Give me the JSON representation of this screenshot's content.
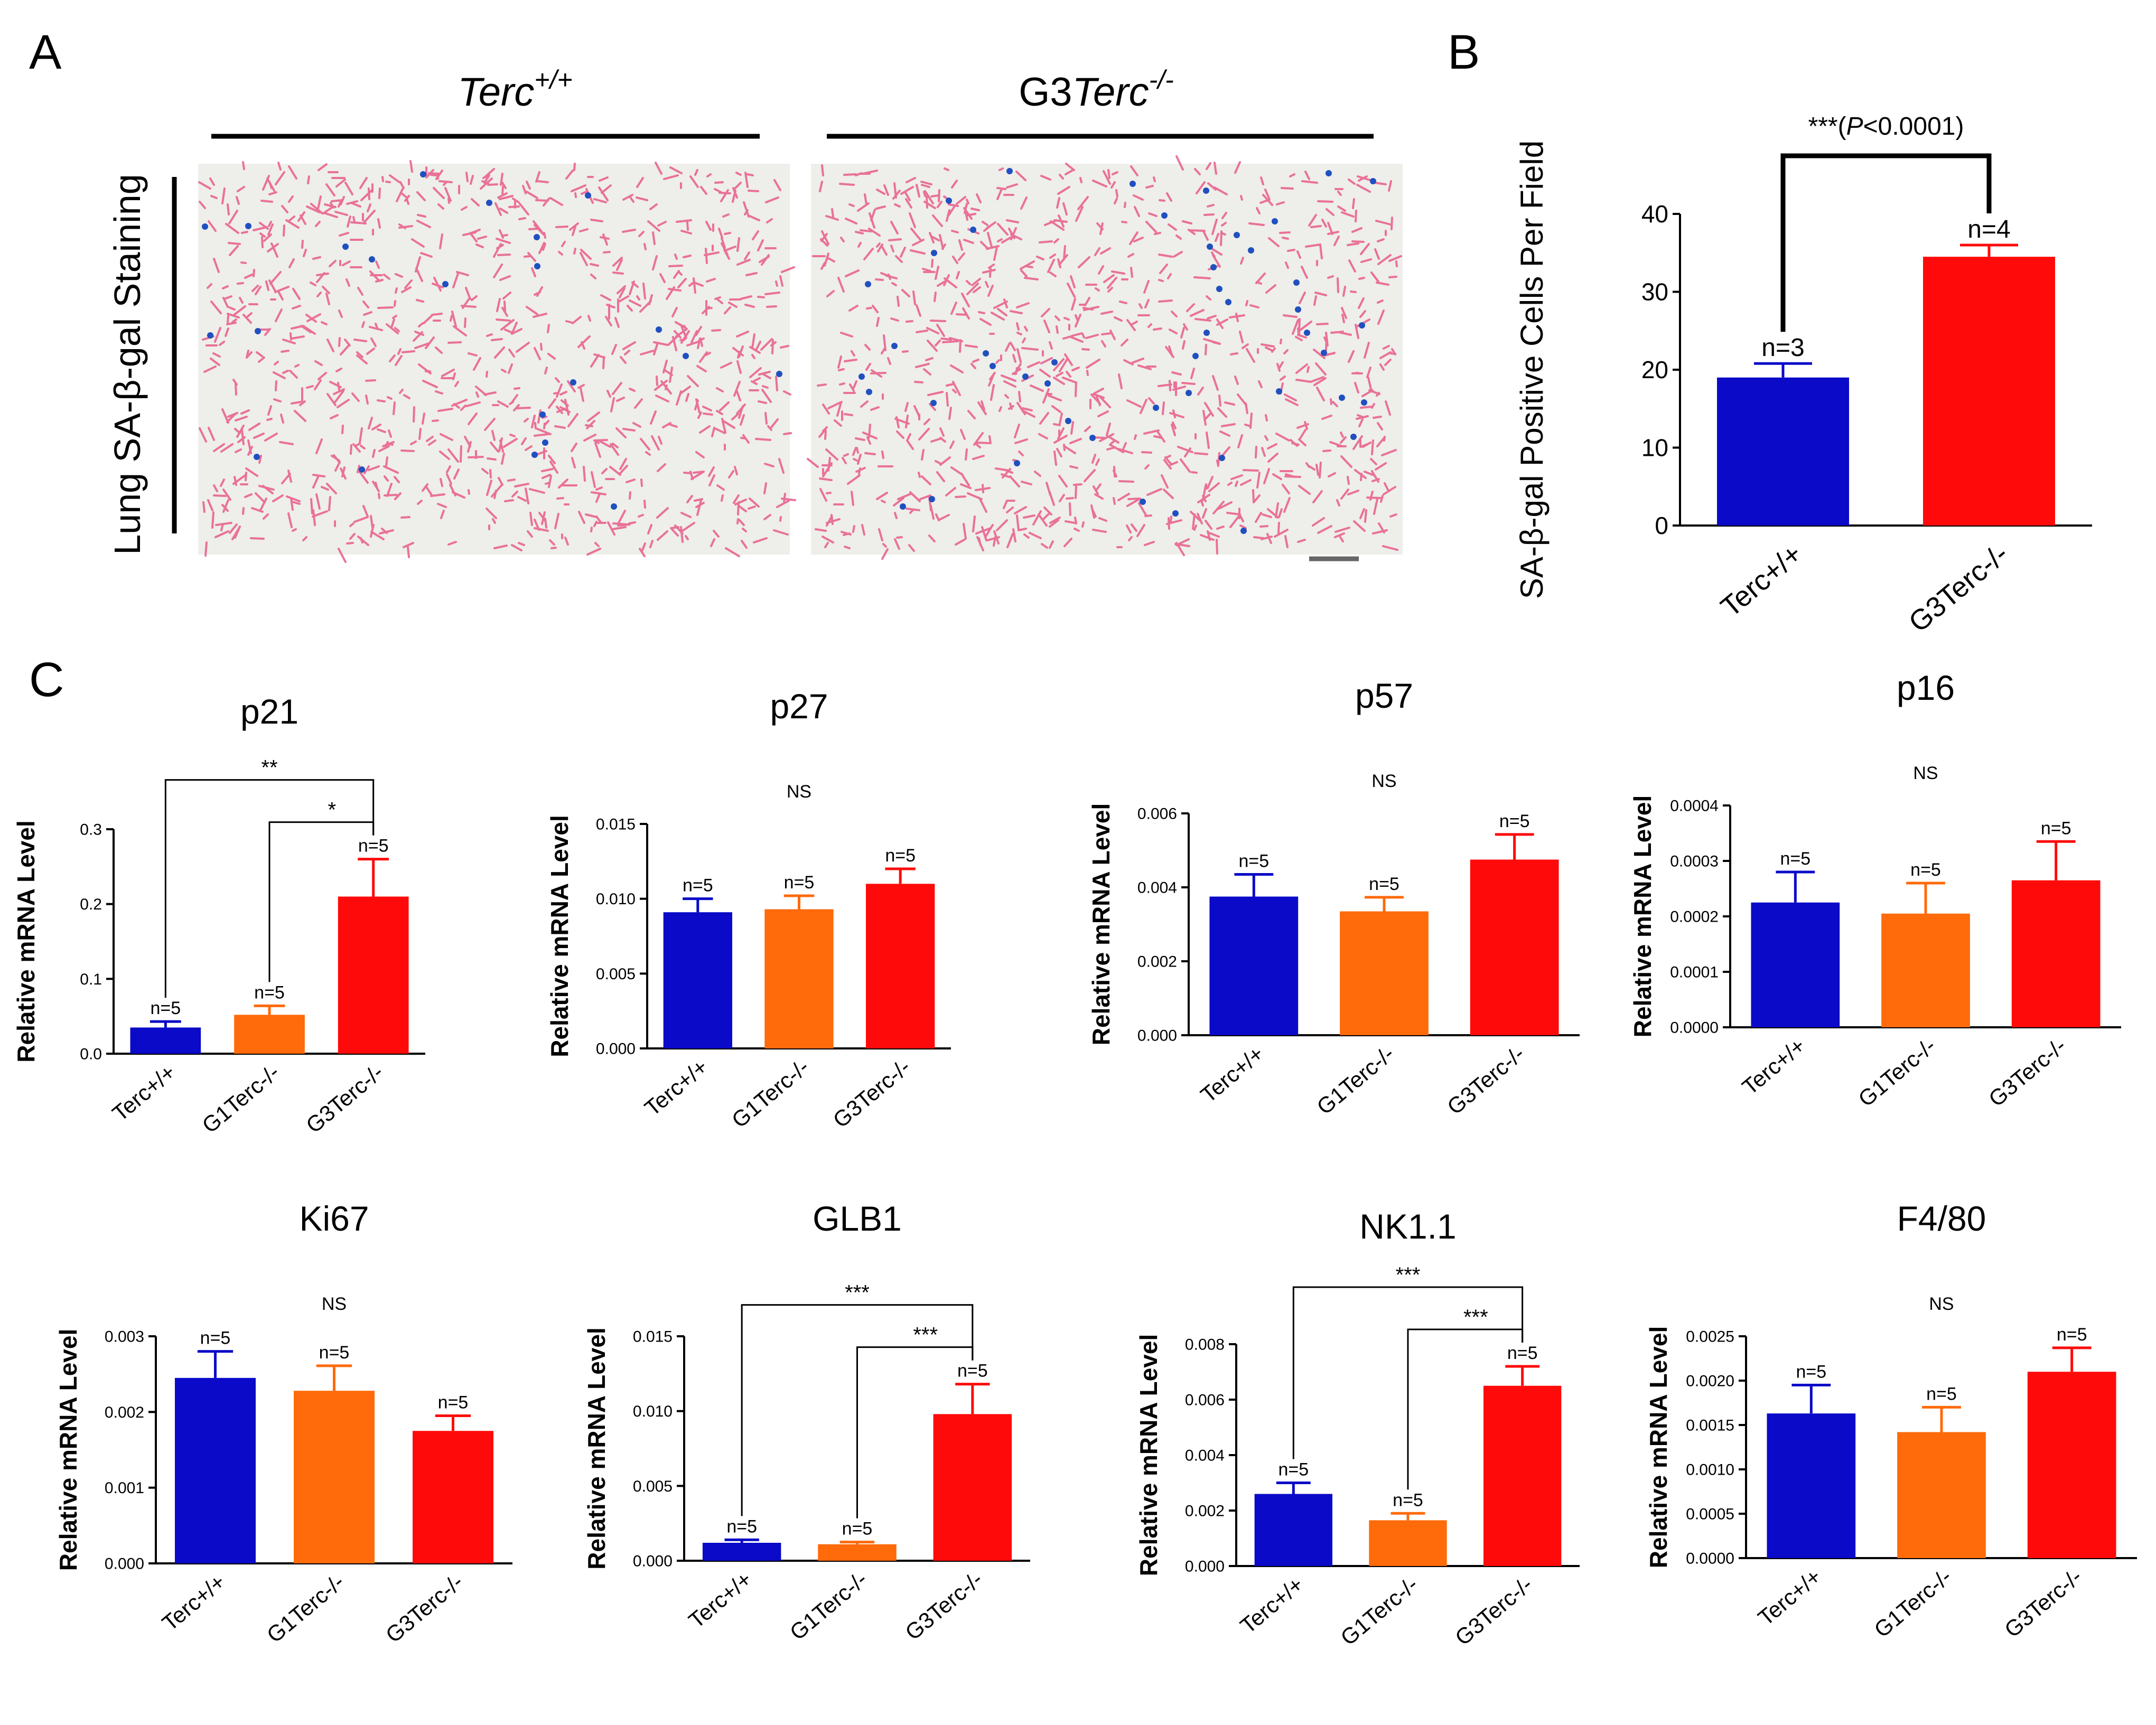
{
  "panels": {
    "a": "A",
    "b": "B",
    "c": "C"
  },
  "histology": {
    "row_label": "Lung SA-β-gal Staining",
    "groups": [
      {
        "base": "Terc",
        "sup": "+/+",
        "prefix": ""
      },
      {
        "base": "Terc",
        "sup": "-/-",
        "prefix": "G3"
      }
    ]
  },
  "colors": {
    "blue": "#0a0ac8",
    "orange": "#ff6a0a",
    "red": "#ff0a0a",
    "tissue_bg": "#eeeeea",
    "tissue_pink": "#e85b8a",
    "stain_blue": "#2050c0"
  },
  "chart_data": [
    {
      "id": "B",
      "type": "bar",
      "title": "",
      "ylabel": "SA-β-gal Positive Cells Per Field",
      "categories": [
        "Terc+/+",
        "G3Terc-/-"
      ],
      "values": [
        19,
        34.5
      ],
      "errors": [
        1.8,
        1.5
      ],
      "n_labels": [
        "n=3",
        "n=4"
      ],
      "ylim": [
        0,
        40
      ],
      "ticks": [
        "0",
        "10",
        "20",
        "30",
        "40"
      ],
      "sig": [
        {
          "from": 0,
          "to": 1,
          "label": "***",
          "p_open": "(",
          "p_italic": "P",
          "p_rest": "<0.0001)"
        }
      ]
    },
    {
      "id": "p21",
      "type": "bar",
      "title": "p21",
      "ylabel": "Relative mRNA Level",
      "categories": [
        "Terc+/+",
        "G1Terc-/-",
        "G3Terc-/-"
      ],
      "values": [
        0.035,
        0.052,
        0.21
      ],
      "errors": [
        0.008,
        0.012,
        0.05
      ],
      "n_labels": [
        "n=5",
        "n=5",
        "n=5"
      ],
      "ylim": [
        0,
        0.3
      ],
      "ticks": [
        "0.0",
        "0.1",
        "0.2",
        "0.3"
      ],
      "sig": [
        {
          "from": 0,
          "to": 2,
          "label": "**"
        },
        {
          "from": 1,
          "to": 2,
          "label": "*"
        }
      ]
    },
    {
      "id": "p27",
      "type": "bar",
      "title": "p27",
      "ylabel": "Relative mRNA Level",
      "categories": [
        "Terc+/+",
        "G1Terc-/-",
        "G3Terc-/-"
      ],
      "values": [
        0.0091,
        0.0093,
        0.011
      ],
      "errors": [
        0.0009,
        0.0009,
        0.001
      ],
      "n_labels": [
        "n=5",
        "n=5",
        "n=5"
      ],
      "ylim": [
        0,
        0.015
      ],
      "ticks": [
        "0.000",
        "0.005",
        "0.010",
        "0.015"
      ],
      "ns": "NS"
    },
    {
      "id": "p57",
      "type": "bar",
      "title": "p57",
      "ylabel": "Relative mRNA Level",
      "categories": [
        "Terc+/+",
        "G1Terc-/-",
        "G3Terc-/-"
      ],
      "values": [
        0.00375,
        0.00335,
        0.00475
      ],
      "errors": [
        0.0006,
        0.00038,
        0.00068
      ],
      "n_labels": [
        "n=5",
        "n=5",
        "n=5"
      ],
      "ylim": [
        0,
        0.006
      ],
      "ticks": [
        "0.000",
        "0.002",
        "0.004",
        "0.006"
      ],
      "ns": "NS"
    },
    {
      "id": "p16",
      "type": "bar",
      "title": "p16",
      "ylabel": "Relative mRNA Level",
      "categories": [
        "Terc+/+",
        "G1Terc-/-",
        "G3Terc-/-"
      ],
      "values": [
        0.000225,
        0.000205,
        0.000265
      ],
      "errors": [
        5.5e-05,
        5.5e-05,
        7e-05
      ],
      "n_labels": [
        "n=5",
        "n=5",
        "n=5"
      ],
      "ylim": [
        0,
        0.0004
      ],
      "ticks": [
        "0.0000",
        "0.0001",
        "0.0002",
        "0.0003",
        "0.0004"
      ],
      "ns": "NS"
    },
    {
      "id": "Ki67",
      "type": "bar",
      "title": "Ki67",
      "ylabel": "Relative mRNA Level",
      "categories": [
        "Terc+/+",
        "G1Terc-/-",
        "G3Terc-/-"
      ],
      "values": [
        0.00245,
        0.00228,
        0.00175
      ],
      "errors": [
        0.00035,
        0.00033,
        0.0002
      ],
      "n_labels": [
        "n=5",
        "n=5",
        "n=5"
      ],
      "ylim": [
        0,
        0.003
      ],
      "ticks": [
        "0.000",
        "0.001",
        "0.002",
        "0.003"
      ],
      "ns": "NS"
    },
    {
      "id": "GLB1",
      "type": "bar",
      "title": "GLB1",
      "ylabel": "Relative mRNA Level",
      "categories": [
        "Terc+/+",
        "G1Terc-/-",
        "G3Terc-/-"
      ],
      "values": [
        0.0012,
        0.0011,
        0.0098
      ],
      "errors": [
        0.0002,
        0.00015,
        0.002
      ],
      "n_labels": [
        "n=5",
        "n=5",
        "n=5"
      ],
      "ylim": [
        0,
        0.015
      ],
      "ticks": [
        "0.000",
        "0.005",
        "0.010",
        "0.015"
      ],
      "sig": [
        {
          "from": 0,
          "to": 2,
          "label": "***"
        },
        {
          "from": 1,
          "to": 2,
          "label": "***"
        }
      ]
    },
    {
      "id": "NK1.1",
      "type": "bar",
      "title": "NK1.1",
      "ylabel": "Relative mRNA Level",
      "categories": [
        "Terc+/+",
        "G1Terc-/-",
        "G3Terc-/-"
      ],
      "values": [
        0.0026,
        0.00165,
        0.0065
      ],
      "errors": [
        0.0004,
        0.00025,
        0.0007
      ],
      "n_labels": [
        "n=5",
        "n=5",
        "n=5"
      ],
      "ylim": [
        0,
        0.008
      ],
      "ticks": [
        "0.000",
        "0.002",
        "0.004",
        "0.006",
        "0.008"
      ],
      "sig": [
        {
          "from": 0,
          "to": 2,
          "label": "***"
        },
        {
          "from": 1,
          "to": 2,
          "label": "***"
        }
      ]
    },
    {
      "id": "F4/80",
      "type": "bar",
      "title": "F4/80",
      "ylabel": "Relative mRNA Level",
      "categories": [
        "Terc+/+",
        "G1Terc-/-",
        "G3Terc-/-"
      ],
      "values": [
        0.00163,
        0.00142,
        0.0021
      ],
      "errors": [
        0.00032,
        0.00028,
        0.00027
      ],
      "n_labels": [
        "n=5",
        "n=5",
        "n=5"
      ],
      "ylim": [
        0,
        0.0025
      ],
      "ticks": [
        "0.0000",
        "0.0005",
        "0.0010",
        "0.0015",
        "0.0020",
        "0.0025"
      ],
      "ns": "NS"
    }
  ]
}
